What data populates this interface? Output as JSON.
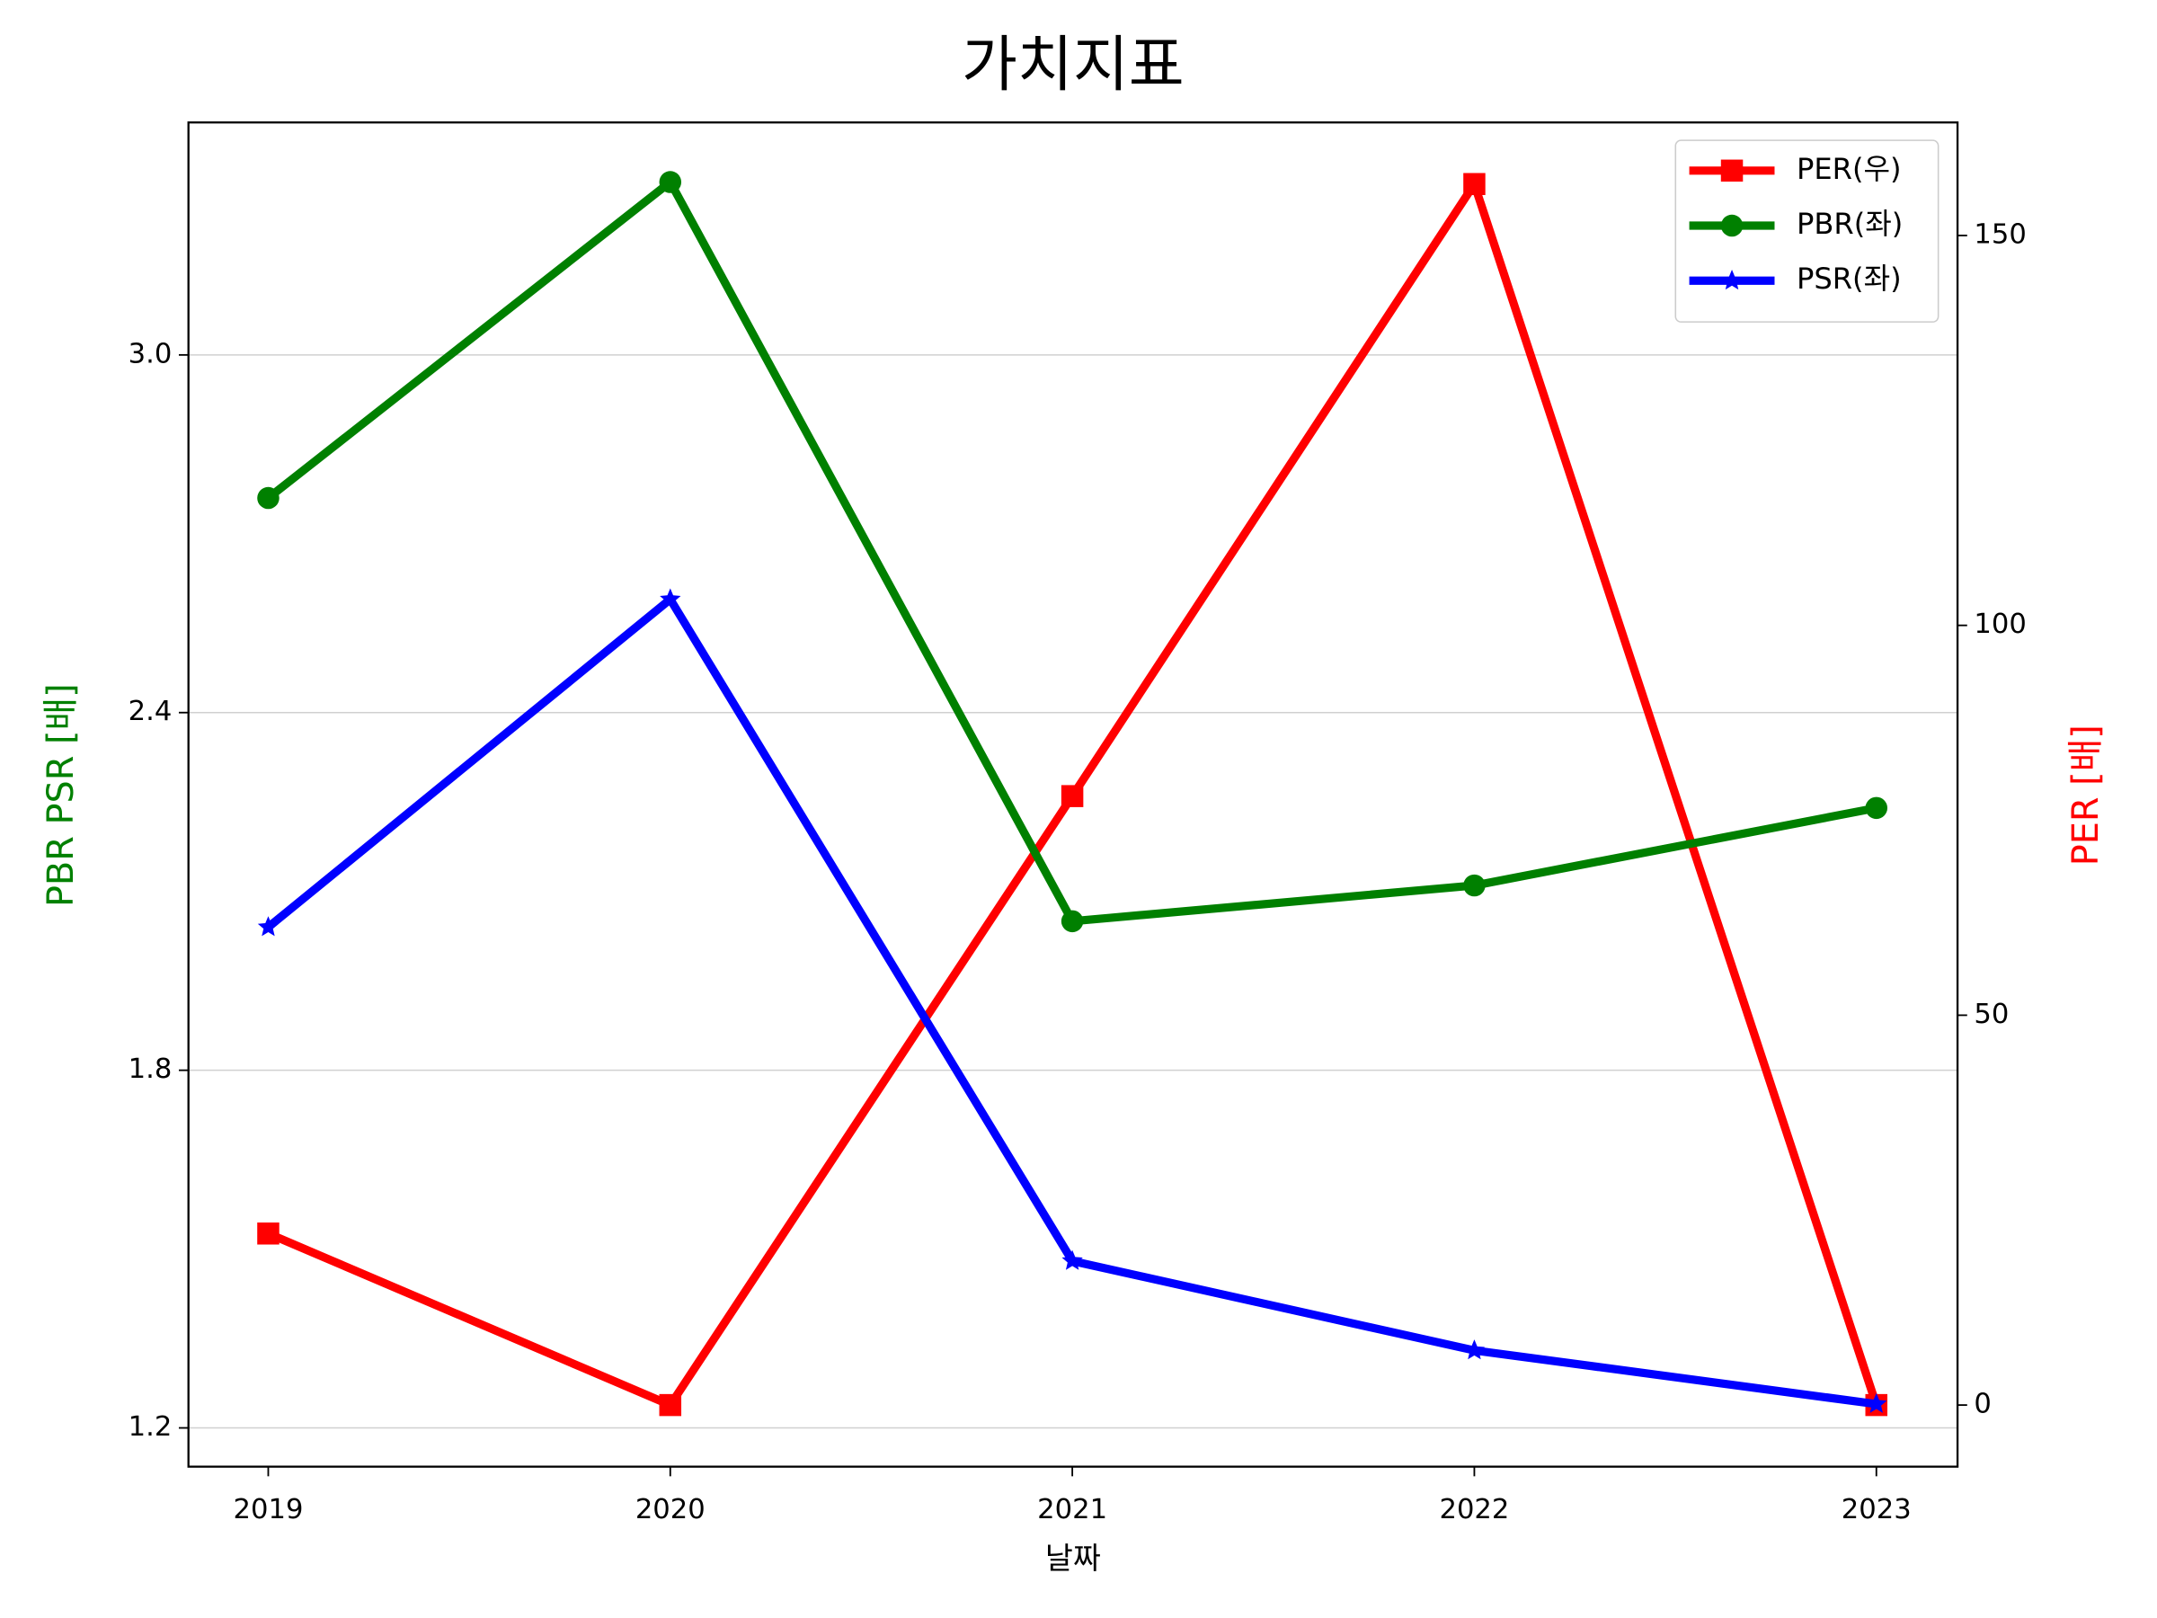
{
  "chart_data": {
    "type": "line",
    "title": "가치지표",
    "x_label": "날짜",
    "y_label": "PBR PSR [배]",
    "y2_label": "PER [배]",
    "categories": [
      "2019",
      "2020",
      "2021",
      "2022",
      "2023"
    ],
    "series": [
      {
        "name": "PER(우)",
        "color": "#ff0000",
        "marker": "square",
        "axis": "y2",
        "values": [
          22.0,
          0,
          78.1,
          156.6,
          0
        ]
      },
      {
        "name": "PBR(좌)",
        "color": "#008000",
        "marker": "circle",
        "values": [
          2.76,
          3.29,
          2.05,
          2.11,
          2.24
        ]
      },
      {
        "name": "PSR(좌)",
        "color": "#0000ff",
        "marker": "star",
        "values": [
          2.04,
          2.59,
          1.48,
          1.33,
          1.24
        ]
      }
    ],
    "ylim": [
      1.135,
      3.39
    ],
    "yticks": [
      {
        "value": 1.2,
        "label": "1.2"
      },
      {
        "value": 1.8,
        "label": "1.8"
      },
      {
        "value": 2.4,
        "label": "2.4"
      },
      {
        "value": 3.0,
        "label": "3.0"
      }
    ],
    "y2lim": [
      -7.9,
      164.5
    ],
    "y2ticks": [
      0,
      50,
      100,
      150
    ],
    "grid": true,
    "legend": "upper-right"
  }
}
